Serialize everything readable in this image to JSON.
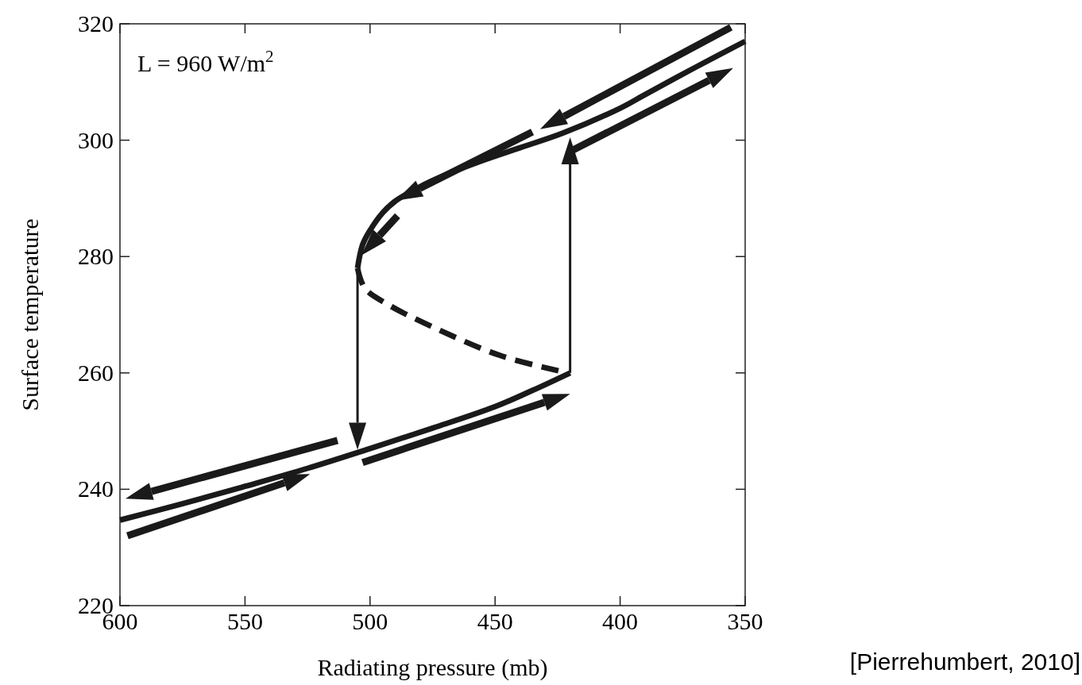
{
  "chart_data": {
    "type": "line",
    "xlabel": "Radiating pressure (mb)",
    "ylabel": "Surface temperature",
    "xlim": [
      600,
      350
    ],
    "xticks": [
      600,
      550,
      500,
      450,
      400,
      350
    ],
    "ylim": [
      220,
      320
    ],
    "yticks": [
      220,
      240,
      260,
      280,
      300,
      320
    ],
    "grid": false,
    "marker": "none",
    "series": [
      {
        "color": "#1a1a1a",
        "line_style": "solid",
        "x": [
          600,
          575,
          550,
          525,
          500,
          475,
          450,
          435,
          420
        ],
        "values": [
          234.7,
          237.5,
          240.5,
          243.6,
          247,
          250.5,
          254.2,
          257,
          260
        ]
      },
      {
        "color": "#1a1a1a",
        "line_style": "dashed",
        "x": [
          505,
          502,
          493,
          474,
          448,
          423
        ],
        "values": [
          278,
          274.5,
          271.8,
          267.7,
          263,
          260.2
        ]
      },
      {
        "color": "#1a1a1a",
        "line_style": "solid",
        "x": [
          505,
          503,
          500,
          495,
          490,
          480,
          470,
          455,
          440,
          423,
          400,
          391,
          370,
          350
        ],
        "values": [
          278,
          282,
          284.5,
          287.5,
          289.5,
          292,
          294,
          296.5,
          298.7,
          301.2,
          305.5,
          307.6,
          312.5,
          317
        ]
      }
    ],
    "annotations": [
      "L = 960 W/m$^{2}$",
      "[Pierrehumbert, 2010]"
    ]
  }
}
